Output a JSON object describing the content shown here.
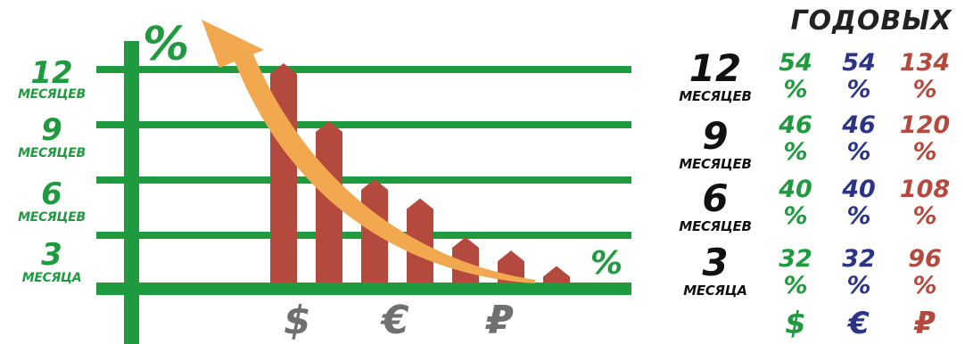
{
  "chart_data": {
    "type": "bar",
    "y_axis_symbol": "%",
    "x_axis_symbol": "%",
    "y_levels": [
      {
        "number": "12",
        "unit": "МЕСЯЦЕВ"
      },
      {
        "number": "9",
        "unit": "МЕСЯЦЕВ"
      },
      {
        "number": "6",
        "unit": "МЕСЯЦЕВ"
      },
      {
        "number": "3",
        "unit": "МЕСЯЦА"
      }
    ],
    "bars": [
      {
        "currency": "$",
        "value": 12
      },
      {
        "currency": "$",
        "value": 9
      },
      {
        "currency": "€",
        "value": 6
      },
      {
        "currency": "€",
        "value": 5
      },
      {
        "currency": "₽",
        "value": 3
      },
      {
        "currency": "₽",
        "value": 2.3
      },
      {
        "currency": "₽",
        "value": 1.5
      }
    ],
    "x_currency_labels": [
      "$",
      "€",
      "₽"
    ],
    "colors": {
      "grid": "#1f9a3f",
      "bar": "#b44a3e",
      "arrow": "#f2a84f",
      "currency": "#707070"
    }
  },
  "table": {
    "title": "ГОДОВЫХ",
    "rows": [
      {
        "term_number": "12",
        "term_unit": "МЕСЯЦЕВ",
        "usd": "54",
        "eur": "54",
        "rub": "134"
      },
      {
        "term_number": "9",
        "term_unit": "МЕСЯЦЕВ",
        "usd": "46",
        "eur": "46",
        "rub": "120"
      },
      {
        "term_number": "6",
        "term_unit": "МЕСЯЦЕВ",
        "usd": "40",
        "eur": "40",
        "rub": "108"
      },
      {
        "term_number": "3",
        "term_unit": "МЕСЯЦА",
        "usd": "32",
        "eur": "32",
        "rub": "96"
      }
    ],
    "percent_sign": "%",
    "currencies": {
      "usd": "$",
      "eur": "€",
      "rub": "₽"
    },
    "colors": {
      "usd": "#1f9a3f",
      "eur": "#2b3487",
      "rub": "#b44a3e"
    }
  }
}
